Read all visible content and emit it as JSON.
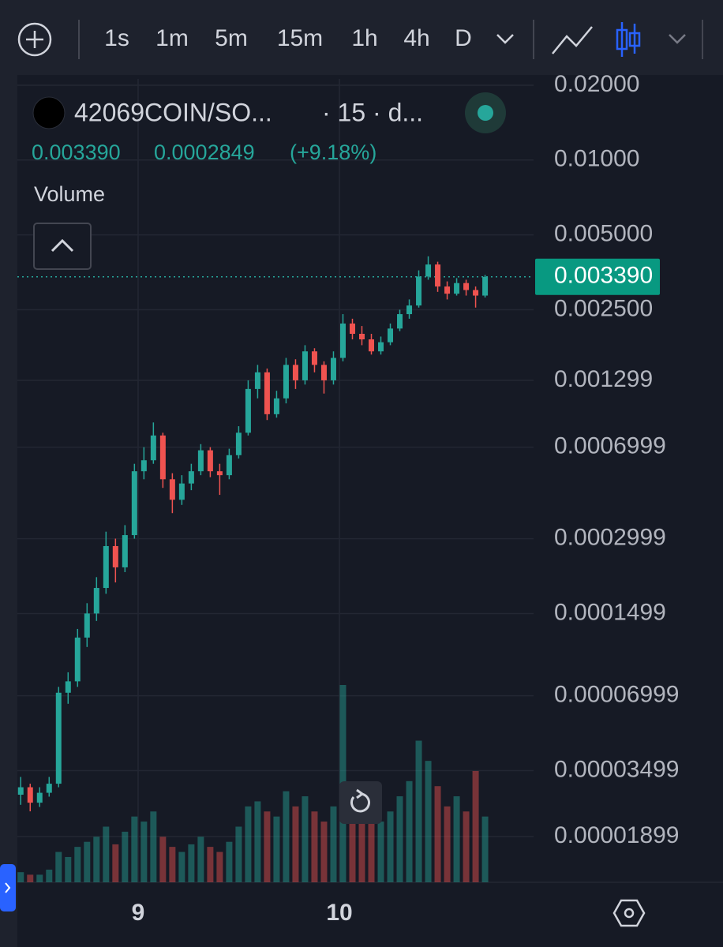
{
  "toolbar": {
    "intervals": [
      "1s",
      "1m",
      "5m",
      "15m",
      "1h",
      "4h",
      "D"
    ],
    "active_interval": "15m"
  },
  "chart_data": {
    "type": "candlestick",
    "symbol": "42069COIN/SO...",
    "interval_info": "· 15 · d...",
    "change": 0.0002849,
    "change_percent": "(+9.18%)",
    "volume_label": "Volume",
    "last_price": {
      "value": 0.00339,
      "label": "0.003390"
    },
    "log_scale": true,
    "grid": true,
    "up_color": "#26a69a",
    "down_color": "#ef5350",
    "x": [
      10,
      11.13,
      12.26,
      13.39,
      14.52,
      15.65,
      16.78,
      17.91,
      19.04,
      20.17,
      21.3,
      22.43,
      23.56,
      24.69,
      25.82,
      26.95,
      28.08,
      29.21,
      30.34,
      31.47,
      32.6,
      33.73,
      34.86,
      35.99,
      37.12,
      38.25,
      39.38,
      40.51,
      41.64,
      42.77,
      43.9,
      45.03,
      46.16,
      47.29,
      48.42,
      49.55,
      50.68,
      51.81,
      52.94,
      54.07,
      55.2,
      56.33,
      57.46,
      58.59,
      59.72,
      60.85,
      61.98,
      63.11,
      64.24,
      65.37
    ],
    "open": [
      2.8e-05,
      3e-05,
      2.6e-05,
      2.85e-05,
      3.1e-05,
      7.2e-05,
      8e-05,
      0.00012,
      0.00015,
      0.00019,
      0.00028,
      0.00023,
      0.00031,
      0.00056,
      0.00062,
      0.00078,
      0.00052,
      0.00043,
      0.0005,
      0.00056,
      0.00068,
      0.00056,
      0.00054,
      0.00065,
      0.0008,
      0.0012,
      0.0014,
      0.00095,
      0.0011,
      0.0015,
      0.0013,
      0.0017,
      0.0015,
      0.0013,
      0.0016,
      0.0022,
      0.002,
      0.0019,
      0.0017,
      0.00185,
      0.0021,
      0.0024,
      0.0026,
      0.0034,
      0.0038,
      0.0031,
      0.0029,
      0.0032,
      0.003,
      0.00285
    ],
    "high": [
      3.3e-05,
      3.1e-05,
      3e-05,
      3.3e-05,
      7.6e-05,
      8.7e-05,
      0.00013,
      0.000165,
      0.00021,
      0.00032,
      0.0003,
      0.00034,
      0.0006,
      0.0007,
      0.00088,
      0.0008,
      0.00055,
      0.00054,
      0.0006,
      0.00072,
      0.0007,
      0.0006,
      0.00069,
      0.00085,
      0.0013,
      0.0015,
      0.00145,
      0.00118,
      0.0016,
      0.00158,
      0.0018,
      0.00175,
      0.00155,
      0.0017,
      0.0024,
      0.0023,
      0.00215,
      0.002,
      0.00195,
      0.0022,
      0.0025,
      0.00275,
      0.0036,
      0.0041,
      0.0039,
      0.00325,
      0.00335,
      0.0033,
      0.0031,
      0.00345
    ],
    "low": [
      2.55e-05,
      2.4e-05,
      2.5e-05,
      2.75e-05,
      3e-05,
      6.5e-05,
      7.6e-05,
      0.00011,
      0.00014,
      0.00018,
      0.0002,
      0.00022,
      0.0003,
      0.00052,
      0.0006,
      0.00048,
      0.00038,
      0.00041,
      0.00047,
      0.00054,
      0.00053,
      0.00045,
      0.00052,
      0.00063,
      0.00078,
      0.0011,
      0.0009,
      0.00092,
      0.00105,
      0.0012,
      0.00125,
      0.0014,
      0.00115,
      0.00125,
      0.00155,
      0.0019,
      0.0018,
      0.00165,
      0.00165,
      0.0018,
      0.00205,
      0.0023,
      0.00255,
      0.0033,
      0.00295,
      0.00275,
      0.00285,
      0.00285,
      0.00255,
      0.0028
    ],
    "close": [
      3e-05,
      2.6e-05,
      2.85e-05,
      3.1e-05,
      7.2e-05,
      8e-05,
      0.00012,
      0.00015,
      0.00019,
      0.00028,
      0.00023,
      0.00031,
      0.00056,
      0.00062,
      0.00078,
      0.00052,
      0.00043,
      0.0005,
      0.00056,
      0.00068,
      0.00056,
      0.00054,
      0.00065,
      0.0008,
      0.0012,
      0.0014,
      0.00095,
      0.0011,
      0.0015,
      0.0013,
      0.0017,
      0.0015,
      0.0013,
      0.0016,
      0.0022,
      0.002,
      0.0019,
      0.0017,
      0.00185,
      0.0021,
      0.0024,
      0.0026,
      0.0034,
      0.0038,
      0.0031,
      0.0029,
      0.0032,
      0.003,
      0.00285,
      0.00339
    ],
    "volume": [
      4,
      3,
      3,
      5,
      12,
      10,
      14,
      16,
      18,
      22,
      15,
      20,
      26,
      24,
      28,
      18,
      14,
      12,
      15,
      18,
      14,
      12,
      16,
      22,
      30,
      32,
      28,
      26,
      36,
      30,
      34,
      28,
      24,
      30,
      78,
      36,
      30,
      26,
      24,
      28,
      34,
      40,
      56,
      48,
      38,
      30,
      34,
      28,
      44,
      26
    ],
    "xlim": [
      9.6,
      71.15
    ],
    "xticks": [
      {
        "value": 24,
        "label": "9"
      },
      {
        "value": 48,
        "label": "10"
      }
    ],
    "ylim": [
      1.244e-05,
      0.0212
    ],
    "yticks": [
      {
        "value": 0.02,
        "label": "0.02000"
      },
      {
        "value": 0.01,
        "label": "0.01000"
      },
      {
        "value": 0.005,
        "label": "0.005000"
      },
      {
        "value": 0.0025,
        "label": "0.002500"
      },
      0.001299,
      0.0006999,
      0.0002999,
      0.0001499,
      6.999e-05,
      3.499e-05,
      1.899e-05
    ]
  }
}
